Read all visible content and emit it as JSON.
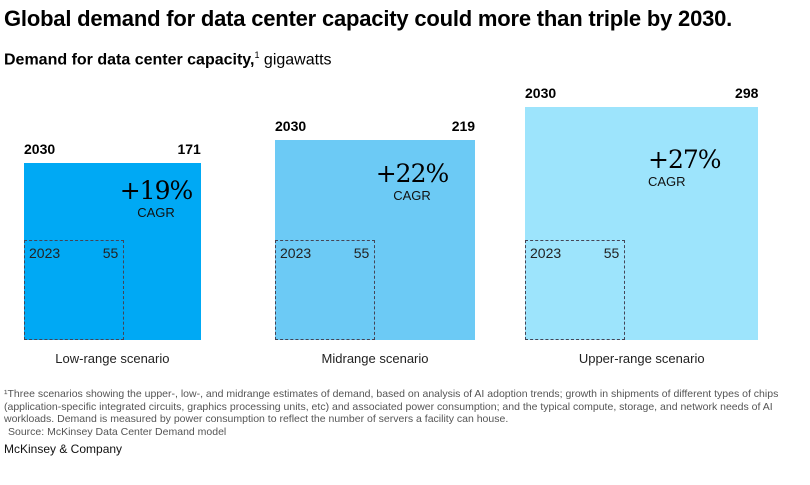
{
  "title": "Global demand for data center capacity could more than triple by 2030.",
  "subtitle": {
    "main": "Demand for data center capacity,",
    "footnote_mark": "1",
    "unit": " gigawatts"
  },
  "chart_data": {
    "type": "proportional-area squares",
    "unit": "gigawatts",
    "base_year": "2023",
    "target_year": "2030",
    "base_value": 55,
    "scenarios": [
      {
        "name": "Low-range scenario",
        "value_2030": 171,
        "value_2023": 55,
        "cagr": "+19%",
        "cagr_label": "CAGR",
        "color": "#00A9F4"
      },
      {
        "name": "Midrange scenario",
        "value_2030": 219,
        "value_2023": 55,
        "cagr": "+22%",
        "cagr_label": "CAGR",
        "color": "#6CCAF5"
      },
      {
        "name": "Upper-range scenario",
        "value_2030": 298,
        "value_2023": 55,
        "cagr": "+27%",
        "cagr_label": "CAGR",
        "color": "#9DE4FC"
      }
    ]
  },
  "footnotes": [
    "¹Three scenarios showing the upper-, low-, and midrange estimates of demand, based on analysis of AI adoption trends; growth in shipments of different types of chips (application-specific integrated circuits, graphics processing units, etc) and associated power consumption; and the typical compute, storage, and network needs of AI workloads. Demand is measured by power consumption to reflect the number of servers a facility can house.",
    "Source: McKinsey Data Center Demand model"
  ],
  "brand": "McKinsey & Company"
}
